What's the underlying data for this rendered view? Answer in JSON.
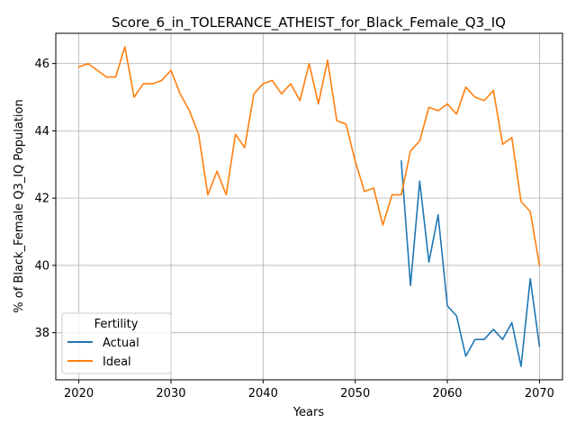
{
  "chart_data": {
    "type": "line",
    "title": "Score_6_in_TOLERANCE_ATHEIST_for_Black_Female_Q3_IQ",
    "xlabel": "Years",
    "ylabel": "% of Black_Female Q3_IQ Population",
    "xlim": [
      2017.5,
      2072.5
    ],
    "ylim": [
      36.6,
      46.9
    ],
    "xticks": [
      2020,
      2030,
      2040,
      2050,
      2060,
      2070
    ],
    "yticks": [
      38,
      40,
      42,
      44,
      46
    ],
    "grid": true,
    "legend": {
      "title": "Fertility",
      "position": "lower-left"
    },
    "series": [
      {
        "name": "Actual",
        "color": "#1f77b4",
        "x": [
          2055,
          2056,
          2057,
          2058,
          2059,
          2060,
          2061,
          2062,
          2063,
          2064,
          2065,
          2066,
          2067,
          2068,
          2069,
          2070
        ],
        "y": [
          43.1,
          39.4,
          42.5,
          40.1,
          41.5,
          38.8,
          38.5,
          37.3,
          37.8,
          37.8,
          38.1,
          37.8,
          38.3,
          37.0,
          39.6,
          37.6
        ]
      },
      {
        "name": "Ideal",
        "color": "#ff7f0e",
        "x": [
          2020,
          2021,
          2022,
          2023,
          2024,
          2025,
          2026,
          2027,
          2028,
          2029,
          2030,
          2031,
          2032,
          2033,
          2034,
          2035,
          2036,
          2037,
          2038,
          2039,
          2040,
          2041,
          2042,
          2043,
          2044,
          2045,
          2046,
          2047,
          2048,
          2049,
          2050,
          2051,
          2052,
          2053,
          2054,
          2055,
          2056,
          2057,
          2058,
          2059,
          2060,
          2061,
          2062,
          2063,
          2064,
          2065,
          2066,
          2067,
          2068,
          2069,
          2070
        ],
        "y": [
          45.9,
          46.0,
          45.8,
          45.6,
          45.6,
          46.5,
          45.0,
          45.4,
          45.4,
          45.5,
          45.8,
          45.1,
          44.6,
          43.9,
          42.1,
          42.8,
          42.1,
          43.9,
          43.5,
          45.1,
          45.4,
          45.5,
          45.1,
          45.4,
          44.9,
          46.0,
          44.8,
          46.1,
          44.3,
          44.2,
          43.1,
          42.2,
          42.3,
          41.2,
          42.1,
          42.1,
          43.4,
          43.7,
          44.7,
          44.6,
          44.8,
          44.5,
          45.3,
          45.0,
          44.9,
          45.2,
          43.6,
          43.8,
          41.9,
          41.6,
          40.0
        ]
      }
    ]
  }
}
